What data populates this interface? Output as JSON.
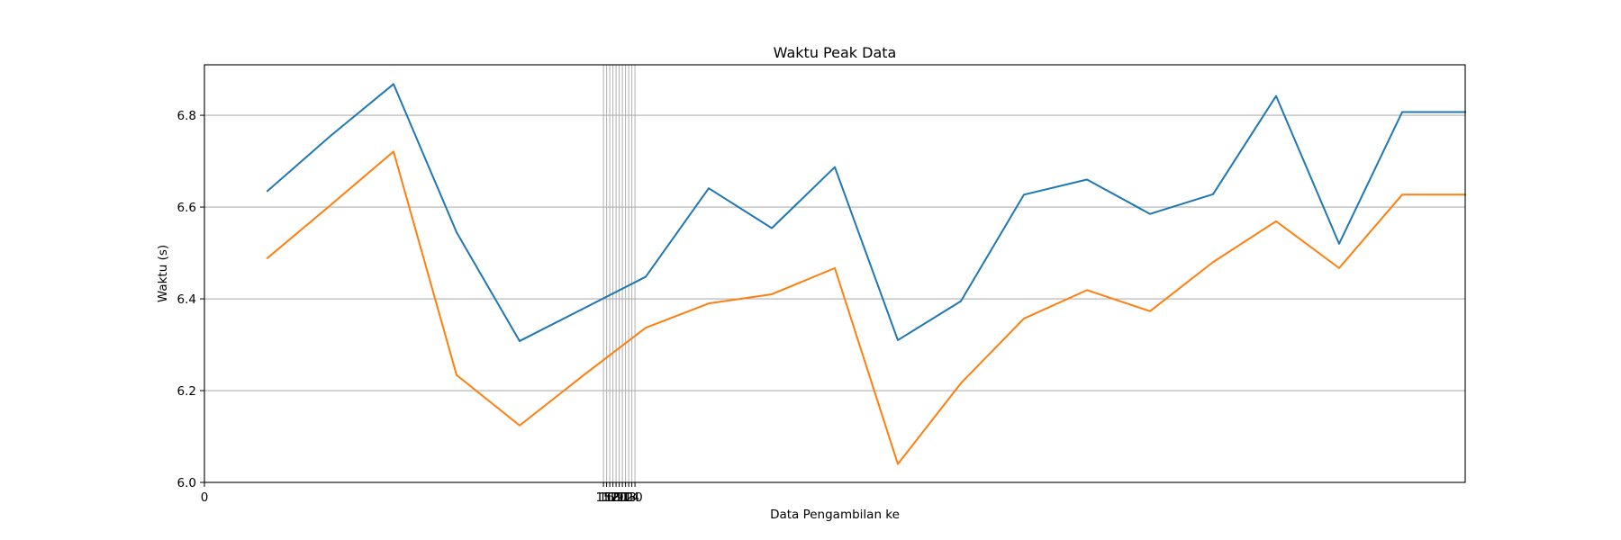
{
  "chart_data": {
    "type": "line",
    "title": "Waktu Peak Data",
    "xlabel": "Data Pengambilan ke",
    "ylabel": "Waktu (s)",
    "xlim": [
      0,
      20
    ],
    "ylim": [
      6.0,
      6.91
    ],
    "grid": "y-major",
    "legend": "none",
    "x": [
      1,
      2,
      3,
      4,
      5,
      6,
      7,
      8,
      9,
      10,
      11,
      12,
      13,
      14,
      15,
      16,
      17,
      18,
      19,
      20
    ],
    "series": [
      {
        "color": "#1f77b4",
        "values": [
          6.635,
          6.755,
          6.868,
          6.545,
          6.308,
          6.378,
          6.448,
          6.641,
          6.554,
          6.687,
          6.31,
          6.395,
          6.627,
          6.66,
          6.585,
          6.628,
          6.842,
          6.52,
          6.807,
          6.807
        ]
      },
      {
        "color": "#ff7f0e",
        "values": [
          6.489,
          6.604,
          6.721,
          6.234,
          6.124,
          6.232,
          6.337,
          6.39,
          6.41,
          6.467,
          6.04,
          6.216,
          6.357,
          6.419,
          6.373,
          6.48,
          6.569,
          6.467,
          6.627,
          6.627
        ]
      }
    ],
    "xticks": [
      "0",
      "15",
      "16",
      "17",
      "18",
      "19",
      "20",
      "11",
      "12",
      "13",
      "14",
      "10"
    ],
    "yticks": [
      "6.0",
      "6.2",
      "6.4",
      "6.6",
      "6.8"
    ],
    "ytick_values": [
      6.0,
      6.2,
      6.4,
      6.6,
      6.8
    ],
    "xtick_gridlines": [
      6.33,
      6.38,
      6.43,
      6.48,
      6.53,
      6.58,
      6.63,
      6.68,
      6.73,
      6.78,
      6.83
    ],
    "colors": {
      "grid": "#b0b0b0",
      "axes": "#000000"
    }
  }
}
